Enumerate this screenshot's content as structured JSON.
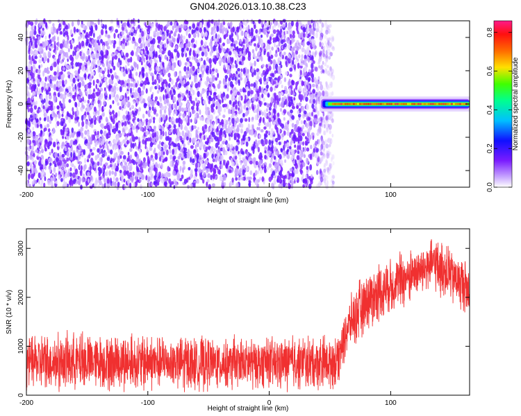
{
  "title": "GN04.2026.013.10.38.C23",
  "colors": {
    "trace": "#f03030",
    "background": "#ffffff",
    "axis": "#000000"
  },
  "chart_data": [
    {
      "type": "heatmap",
      "xlabel": "Height of straight line (km)",
      "ylabel": "Frequency (Hz)",
      "xlim": [
        -200,
        165
      ],
      "ylim": [
        -50,
        50
      ],
      "xticks": [
        "-200",
        "-100",
        "0",
        "100"
      ],
      "xtick_values": [
        -200,
        -100,
        0,
        100
      ],
      "yticks": [
        "40",
        "20",
        "0",
        "-20",
        "-40"
      ],
      "ytick_values": [
        40,
        20,
        0,
        -20,
        -40
      ],
      "description_regions": [
        {
          "x_range": [
            -200,
            45
          ],
          "freq_range": [
            -50,
            50
          ],
          "amplitude_range": [
            0.05,
            0.15
          ],
          "pattern": "noise"
        },
        {
          "x_range": [
            45,
            165
          ],
          "freq_range": [
            -3,
            3
          ],
          "amplitude_range": [
            0.3,
            0.9
          ],
          "pattern": "line at 0 Hz"
        }
      ],
      "colorbar": {
        "label": "Normalized spectral amplitude",
        "ticks": [
          "0.0",
          "0.2",
          "0.4",
          "0.6",
          "0.8"
        ],
        "tick_values": [
          0.0,
          0.2,
          0.4,
          0.6,
          0.8
        ],
        "range": [
          0.0,
          0.86
        ]
      }
    },
    {
      "type": "line",
      "xlabel": "Height of straight line (km)",
      "ylabel": "SNR (10 * v/v)",
      "xlim": [
        -200,
        165
      ],
      "ylim": [
        0,
        3400
      ],
      "xticks": [
        "-200",
        "-100",
        "0",
        "100"
      ],
      "xtick_values": [
        -200,
        -100,
        0,
        100
      ],
      "yticks": [
        "3000",
        "2000",
        "1000",
        "0"
      ],
      "ytick_values": [
        3000,
        2000,
        1000,
        0
      ],
      "series": [
        {
          "name": "SNR",
          "envelope_x": [
            -200,
            -150,
            -100,
            -50,
            0,
            40,
            55,
            65,
            80,
            100,
            120,
            135,
            150,
            165
          ],
          "envelope_low": [
            50,
            50,
            50,
            50,
            50,
            80,
            100,
            800,
            1300,
            1600,
            1900,
            2100,
            1800,
            1500
          ],
          "envelope_high": [
            1300,
            1350,
            1300,
            1250,
            1250,
            1250,
            1300,
            2000,
            2600,
            2900,
            3100,
            3300,
            3100,
            2800
          ]
        }
      ]
    }
  ]
}
